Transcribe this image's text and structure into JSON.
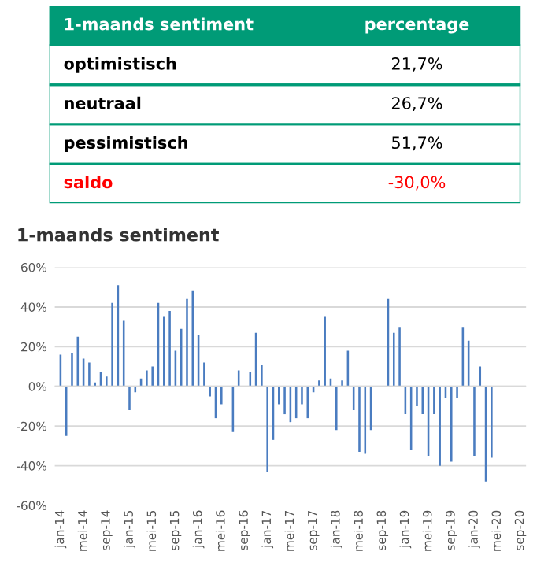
{
  "chart_data": [
    {
      "type": "other",
      "title": "1-maands sentiment",
      "annotations": [
        "percentage"
      ],
      "categories": [
        "optimistisch",
        "neutraal",
        "pessimistisch",
        "saldo"
      ],
      "values": [
        21.7,
        26.7,
        51.7,
        -30.0
      ],
      "value_labels": [
        "21,7%",
        "26,7%",
        "51,7%",
        "-30,0%"
      ],
      "colors": [
        "#000000",
        "#000000",
        "#000000",
        "#ff0000"
      ],
      "color": "#009b77"
    },
    {
      "type": "bar",
      "title": "1-maands sentiment",
      "color": "#4a7cc0",
      "grid": "y",
      "ylim": [
        -60,
        60
      ],
      "yticks": [
        {
          "value": -60,
          "label": "-60%"
        },
        {
          "value": -40,
          "label": "-40%"
        },
        {
          "value": -20,
          "label": "-20%"
        },
        {
          "value": 0,
          "label": "0%"
        },
        {
          "value": 20,
          "label": "20%"
        },
        {
          "value": 40,
          "label": "40%"
        },
        {
          "value": 60,
          "label": "60%"
        }
      ],
      "categories": [
        "jan-14",
        null,
        null,
        null,
        "mei-14",
        null,
        null,
        null,
        "sep-14",
        null,
        null,
        null,
        "jan-15",
        null,
        null,
        null,
        "mei-15",
        null,
        null,
        null,
        "sep-15",
        null,
        null,
        null,
        "jan-16",
        null,
        null,
        null,
        "mei-16",
        null,
        null,
        null,
        "sep-16",
        null,
        null,
        null,
        "jan-17",
        null,
        null,
        null,
        "mei-17",
        null,
        null,
        null,
        "sep-17",
        null,
        null,
        null,
        "jan-18",
        null,
        null,
        null,
        "mei-18",
        null,
        null,
        null,
        "sep-18",
        null,
        null,
        null,
        "jan-19",
        null,
        null,
        null,
        "mei-19",
        null,
        null,
        null,
        "sep-19",
        null,
        null,
        null,
        "jan-20",
        null,
        null,
        null,
        "mei-20",
        null,
        null,
        null,
        "sep-20"
      ],
      "values": [
        16,
        -25,
        17,
        25,
        14,
        12,
        2,
        7,
        5,
        42,
        51,
        33,
        -12,
        -3,
        4,
        8,
        10,
        42,
        35,
        38,
        18,
        29,
        44,
        48,
        26,
        12,
        -5,
        -16,
        -9,
        null,
        -23,
        8,
        0,
        7,
        27,
        11,
        -43,
        -27,
        -9,
        -14,
        -18,
        -16,
        -9,
        -16,
        -3,
        3,
        35,
        4,
        -22,
        3,
        18,
        -12,
        -33,
        -34,
        -22,
        null,
        0,
        44,
        27,
        30,
        -14,
        -32,
        -10,
        -14,
        -35,
        -14,
        -40,
        -6,
        -38,
        -6,
        30,
        23,
        -35,
        10,
        -48,
        -36,
        null,
        null,
        null,
        null,
        null
      ]
    }
  ]
}
